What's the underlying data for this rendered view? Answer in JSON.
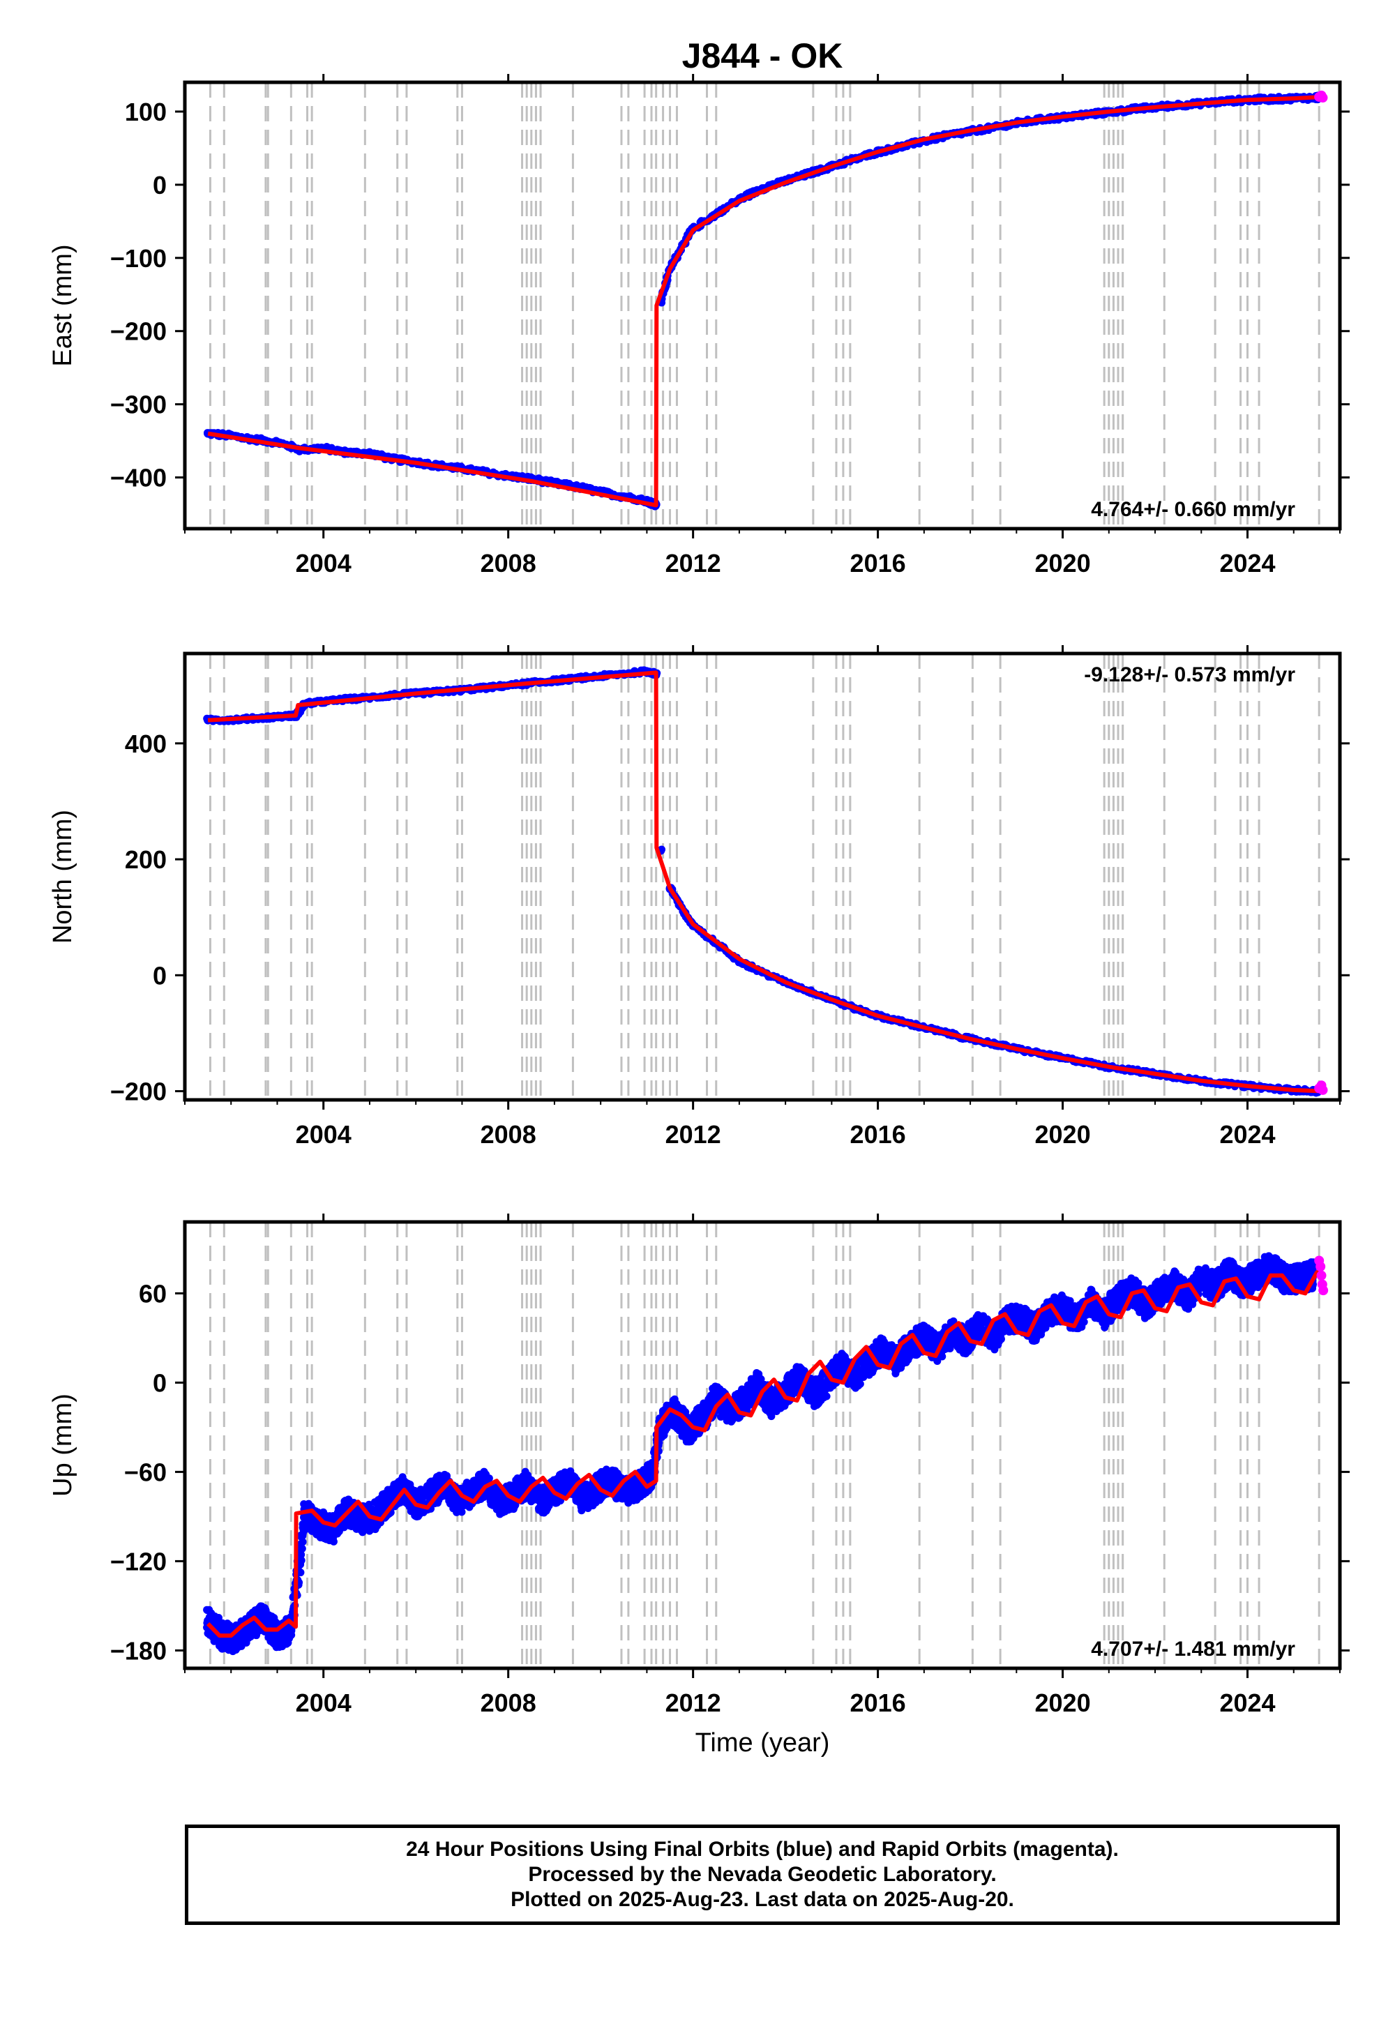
{
  "title": "J844 - OK",
  "xlabel": "Time (year)",
  "footer": {
    "line1": "24 Hour Positions Using Final Orbits (blue) and Rapid Orbits (magenta).",
    "line2": "Processed by the Nevada Geodetic Laboratory.",
    "line3": "Plotted on 2025-Aug-23. Last data on 2025-Aug-20."
  },
  "colors": {
    "final_orbits": "#0000ff",
    "rapid_orbits": "#ff00ff",
    "model": "#ff0000",
    "event_lines": "#c0c0c0",
    "frame": "#000000"
  },
  "chart_data": [
    {
      "type": "scatter",
      "component": "east",
      "ylabel": "East (mm)",
      "rate_text": "4.764+/- 0.660 mm/yr",
      "rate_position": "bottom-right",
      "xlim": [
        2001.0,
        2026.0
      ],
      "ylim": [
        -470,
        140
      ],
      "xticks": [
        2004,
        2008,
        2012,
        2016,
        2020,
        2024
      ],
      "xtick_labels": [
        "2004",
        "2008",
        "2012",
        "2016",
        "2020",
        "2024"
      ],
      "yticks": [
        -400,
        -300,
        -200,
        -100,
        0,
        100
      ],
      "ytick_labels": [
        "−400",
        "−300",
        "−200",
        "−100",
        "0",
        "100"
      ],
      "grid": false,
      "series": [
        {
          "role": "final_orbits_points",
          "x": [
            2001.5,
            2002.0,
            2002.5,
            2003.0,
            2003.5,
            2004.0,
            2004.5,
            2005.0,
            2005.5,
            2006.0,
            2006.5,
            2007.0,
            2007.5,
            2008.0,
            2008.5,
            2009.0,
            2009.5,
            2010.0,
            2010.5,
            2011.0,
            2011.2,
            2011.3,
            2011.5,
            2011.8,
            2012.0,
            2012.5,
            2013.0,
            2013.5,
            2014.0,
            2014.5,
            2015.0,
            2015.5,
            2016.0,
            2016.5,
            2017.0,
            2017.5,
            2018.0,
            2018.5,
            2019.0,
            2019.5,
            2020.0,
            2020.5,
            2021.0,
            2021.5,
            2022.0,
            2022.5,
            2023.0,
            2023.5,
            2024.0,
            2024.5,
            2025.0,
            2025.5
          ],
          "y": [
            -340,
            -343,
            -348,
            -352,
            -362,
            -360,
            -366,
            -367,
            -375,
            -379,
            -384,
            -388,
            -393,
            -398,
            -402,
            -408,
            -413,
            -420,
            -426,
            -432,
            -437,
            -160,
            -115,
            -80,
            -60,
            -40,
            -20,
            -5,
            5,
            15,
            25,
            35,
            45,
            52,
            60,
            67,
            73,
            78,
            84,
            89,
            92,
            96,
            99,
            103,
            106,
            109,
            111,
            114,
            116,
            117,
            118,
            119
          ]
        },
        {
          "role": "rapid_orbits_points",
          "x": [
            2025.55,
            2025.6,
            2025.63
          ],
          "y": [
            120,
            122,
            119
          ]
        },
        {
          "role": "model",
          "x": [
            2001.5,
            2003.5,
            2006.0,
            2008.5,
            2011.2,
            2011.21,
            2011.5,
            2012.0,
            2013.0,
            2014.0,
            2015.0,
            2016.0,
            2017.0,
            2018.0,
            2019.0,
            2020.0,
            2021.0,
            2022.0,
            2023.0,
            2024.0,
            2025.0,
            2025.6
          ],
          "y": [
            -340,
            -360,
            -380,
            -405,
            -438,
            -165,
            -115,
            -62,
            -22,
            3,
            25,
            45,
            62,
            74,
            85,
            93,
            100,
            106,
            111,
            116,
            118,
            120
          ]
        }
      ]
    },
    {
      "type": "scatter",
      "component": "north",
      "ylabel": "North (mm)",
      "rate_text": "-9.128+/- 0.573 mm/yr",
      "rate_position": "top-right",
      "xlim": [
        2001.0,
        2026.0
      ],
      "ylim": [
        -215,
        555
      ],
      "xticks": [
        2004,
        2008,
        2012,
        2016,
        2020,
        2024
      ],
      "xtick_labels": [
        "2004",
        "2008",
        "2012",
        "2016",
        "2020",
        "2024"
      ],
      "yticks": [
        -200,
        0,
        200,
        400
      ],
      "ytick_labels": [
        "−200",
        "0",
        "200",
        "400"
      ],
      "grid": false,
      "series": [
        {
          "role": "final_orbits_points",
          "x": [
            2001.5,
            2002.0,
            2002.5,
            2003.0,
            2003.4,
            2003.6,
            2004.0,
            2004.5,
            2005.0,
            2005.5,
            2006.0,
            2006.5,
            2007.0,
            2007.5,
            2008.0,
            2008.5,
            2009.0,
            2009.5,
            2010.0,
            2010.5,
            2011.0,
            2011.2,
            2011.3,
            2011.5,
            2011.8,
            2012.0,
            2012.5,
            2013.0,
            2013.5,
            2014.0,
            2014.5,
            2015.0,
            2015.5,
            2016.0,
            2016.5,
            2017.0,
            2017.5,
            2018.0,
            2018.5,
            2019.0,
            2019.5,
            2020.0,
            2020.5,
            2021.0,
            2021.5,
            2022.0,
            2022.5,
            2023.0,
            2023.5,
            2024.0,
            2024.5,
            2025.0,
            2025.5
          ],
          "y": [
            440,
            441,
            443,
            446,
            448,
            468,
            472,
            476,
            479,
            483,
            486,
            489,
            492,
            496,
            500,
            504,
            508,
            512,
            516,
            520,
            524,
            520,
            215,
            150,
            110,
            85,
            55,
            25,
            5,
            -12,
            -27,
            -42,
            -57,
            -70,
            -80,
            -90,
            -100,
            -110,
            -118,
            -127,
            -135,
            -143,
            -150,
            -158,
            -164,
            -170,
            -176,
            -182,
            -187,
            -191,
            -195,
            -198,
            -200
          ]
        },
        {
          "role": "rapid_orbits_points",
          "x": [
            2025.55,
            2025.6,
            2025.63
          ],
          "y": [
            -195,
            -190,
            -198
          ]
        },
        {
          "role": "model",
          "x": [
            2001.5,
            2003.4,
            2003.45,
            2006.0,
            2008.5,
            2011.2,
            2011.21,
            2011.5,
            2012.0,
            2013.0,
            2014.0,
            2015.0,
            2016.0,
            2017.0,
            2018.0,
            2019.0,
            2020.0,
            2021.0,
            2022.0,
            2023.0,
            2024.0,
            2025.0,
            2025.6
          ],
          "y": [
            440,
            448,
            466,
            486,
            504,
            522,
            220,
            150,
            88,
            28,
            -12,
            -42,
            -70,
            -90,
            -110,
            -127,
            -143,
            -158,
            -170,
            -182,
            -191,
            -198,
            -200
          ]
        }
      ]
    },
    {
      "type": "scatter",
      "component": "up",
      "ylabel": "Up (mm)",
      "rate_text": "4.707+/- 1.481 mm/yr",
      "rate_position": "bottom-right",
      "xlim": [
        2001.0,
        2026.0
      ],
      "ylim": [
        -192,
        108
      ],
      "xticks": [
        2004,
        2008,
        2012,
        2016,
        2020,
        2024
      ],
      "xtick_labels": [
        "2004",
        "2008",
        "2012",
        "2016",
        "2020",
        "2024"
      ],
      "yticks": [
        -180,
        -120,
        -60,
        0,
        60
      ],
      "ytick_labels": [
        "−180",
        "−120",
        "−60",
        "0",
        "60"
      ],
      "grid": false,
      "series": [
        {
          "role": "final_orbits_points",
          "x": [
            2001.5,
            2001.8,
            2002.1,
            2002.4,
            2002.7,
            2003.0,
            2003.3,
            2003.6,
            2003.9,
            2004.2,
            2004.5,
            2004.8,
            2005.1,
            2005.4,
            2005.7,
            2006.0,
            2006.3,
            2006.6,
            2006.9,
            2007.2,
            2007.5,
            2007.8,
            2008.1,
            2008.4,
            2008.7,
            2009.0,
            2009.3,
            2009.6,
            2009.9,
            2010.2,
            2010.5,
            2010.8,
            2011.1,
            2011.3,
            2011.6,
            2011.9,
            2012.2,
            2012.5,
            2012.8,
            2013.1,
            2013.4,
            2013.7,
            2014.0,
            2014.3,
            2014.6,
            2014.9,
            2015.2,
            2015.5,
            2015.8,
            2016.1,
            2016.4,
            2016.7,
            2017.0,
            2017.3,
            2017.6,
            2017.9,
            2018.2,
            2018.5,
            2018.8,
            2019.1,
            2019.4,
            2019.7,
            2020.0,
            2020.3,
            2020.6,
            2020.9,
            2021.2,
            2021.5,
            2021.8,
            2022.1,
            2022.4,
            2022.7,
            2023.0,
            2023.3,
            2023.6,
            2023.9,
            2024.2,
            2024.5,
            2024.8,
            2025.1,
            2025.4
          ],
          "y": [
            -160,
            -170,
            -172,
            -164,
            -158,
            -170,
            -166,
            -88,
            -95,
            -98,
            -86,
            -92,
            -90,
            -80,
            -72,
            -82,
            -76,
            -68,
            -80,
            -74,
            -68,
            -80,
            -76,
            -68,
            -80,
            -74,
            -66,
            -78,
            -72,
            -64,
            -74,
            -70,
            -62,
            -28,
            -20,
            -32,
            -24,
            -10,
            -20,
            -12,
            -2,
            -14,
            -6,
            4,
            -8,
            0,
            12,
            4,
            14,
            22,
            14,
            26,
            30,
            22,
            34,
            28,
            38,
            30,
            42,
            44,
            36,
            48,
            50,
            42,
            54,
            46,
            56,
            62,
            52,
            60,
            66,
            58,
            70,
            64,
            74,
            66,
            72,
            78,
            70,
            70,
            72
          ]
        },
        {
          "role": "rapid_orbits_points",
          "x": [
            2025.55,
            2025.58,
            2025.6,
            2025.62,
            2025.64
          ],
          "y": [
            82,
            78,
            72,
            66,
            62
          ]
        },
        {
          "role": "model",
          "x": [
            2001.5,
            2001.75,
            2002.0,
            2002.25,
            2002.5,
            2002.75,
            2003.0,
            2003.25,
            2003.4,
            2003.41,
            2003.75,
            2004.0,
            2004.25,
            2004.5,
            2004.75,
            2005.0,
            2005.25,
            2005.5,
            2005.75,
            2006.0,
            2006.25,
            2006.5,
            2006.75,
            2007.0,
            2007.25,
            2007.5,
            2007.75,
            2008.0,
            2008.25,
            2008.5,
            2008.75,
            2009.0,
            2009.25,
            2009.5,
            2009.75,
            2010.0,
            2010.25,
            2010.5,
            2010.75,
            2011.0,
            2011.2,
            2011.21,
            2011.5,
            2011.75,
            2012.0,
            2012.25,
            2012.5,
            2012.75,
            2013.0,
            2013.25,
            2013.5,
            2013.75,
            2014.0,
            2014.25,
            2014.5,
            2014.75,
            2015.0,
            2015.25,
            2015.5,
            2015.75,
            2016.0,
            2016.25,
            2016.5,
            2016.75,
            2017.0,
            2017.25,
            2017.5,
            2017.75,
            2018.0,
            2018.25,
            2018.5,
            2018.75,
            2019.0,
            2019.25,
            2019.5,
            2019.75,
            2020.0,
            2020.25,
            2020.5,
            2020.75,
            2021.0,
            2021.25,
            2021.5,
            2021.75,
            2022.0,
            2022.25,
            2022.5,
            2022.75,
            2023.0,
            2023.25,
            2023.5,
            2023.75,
            2024.0,
            2024.25,
            2024.5,
            2024.75,
            2025.0,
            2025.25,
            2025.5,
            2025.6
          ],
          "y": [
            -162,
            -170,
            -170,
            -163,
            -158,
            -166,
            -166,
            -160,
            -164,
            -88,
            -86,
            -94,
            -96,
            -88,
            -80,
            -90,
            -92,
            -82,
            -72,
            -82,
            -84,
            -74,
            -66,
            -76,
            -80,
            -70,
            -66,
            -76,
            -80,
            -70,
            -64,
            -74,
            -78,
            -68,
            -62,
            -72,
            -76,
            -66,
            -60,
            -70,
            -66,
            -30,
            -18,
            -22,
            -30,
            -32,
            -16,
            -8,
            -20,
            -22,
            -6,
            2,
            -10,
            -12,
            6,
            14,
            2,
            0,
            16,
            24,
            12,
            10,
            26,
            32,
            20,
            18,
            34,
            40,
            28,
            26,
            42,
            46,
            34,
            32,
            48,
            52,
            40,
            38,
            54,
            58,
            46,
            44,
            60,
            62,
            50,
            48,
            64,
            66,
            54,
            52,
            68,
            70,
            58,
            56,
            72,
            72,
            62,
            60,
            74,
            76
          ]
        }
      ]
    }
  ]
}
